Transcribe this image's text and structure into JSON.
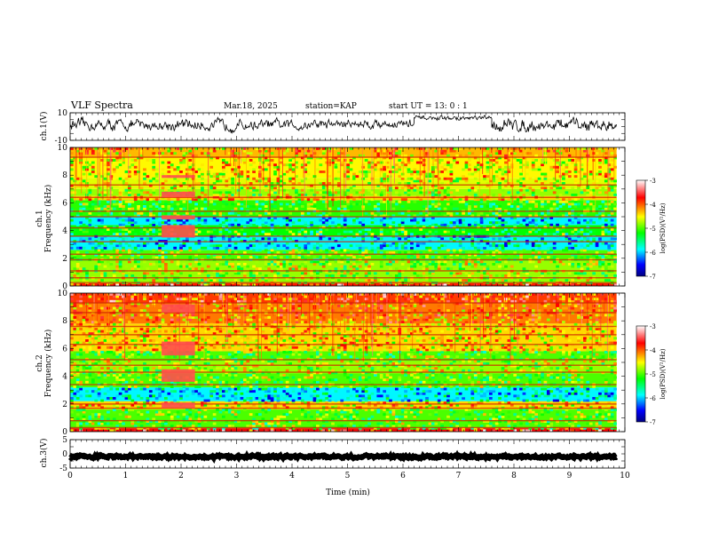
{
  "header": {
    "title": "VLF Spectra",
    "date": "Mar.18, 2025",
    "station": "station=KAP",
    "start": "start  UT =   13: 0  : 1"
  },
  "colorbar": {
    "label": "log(PSD)(V²/Hz)",
    "ticks": [
      "-3",
      "-4",
      "-5",
      "-6",
      "-7"
    ],
    "colors": [
      "#ffffff",
      "#ff0000",
      "#ffff00",
      "#00ff00",
      "#00ffff",
      "#0000ff",
      "#000080"
    ]
  },
  "chart_data": [
    {
      "type": "line",
      "name": "ch1 waveform",
      "ylabel": "ch.1(V)",
      "ylim": [
        -10,
        10
      ],
      "y_ticks": [
        "10",
        "-10"
      ],
      "xlim": [
        0,
        10
      ],
      "x_unit": "min",
      "segments": [
        {
          "x": [
            0,
            4.3
          ],
          "mean": 1.0,
          "amp": 3.5
        },
        {
          "x": [
            4.3,
            6.2
          ],
          "mean": 2.0,
          "amp": 3.0
        },
        {
          "x": [
            6.2,
            7.6
          ],
          "mean": 6.0,
          "amp": 1.5
        },
        {
          "x": [
            7.6,
            9.85
          ],
          "mean": 1.0,
          "amp": 4.0
        }
      ]
    },
    {
      "type": "heatmap",
      "name": "ch1 spectrogram",
      "ylabel_top": "ch.1",
      "ylabel": "Frequency (kHz)",
      "y_ticks": [
        "0",
        "2",
        "4",
        "6",
        "8",
        "10"
      ],
      "ylim": [
        0,
        10
      ],
      "xlim": [
        0,
        10
      ],
      "data_xmax": 9.85,
      "zlim": [
        -7,
        -3
      ],
      "bands": [
        {
          "f": [
            0.0,
            0.2
          ],
          "z": -3.8
        },
        {
          "f": [
            0.2,
            1.8
          ],
          "z": -4.8
        },
        {
          "f": [
            1.8,
            2.6
          ],
          "z": -5.0
        },
        {
          "f": [
            2.6,
            3.6
          ],
          "z": -5.9
        },
        {
          "f": [
            3.6,
            4.4
          ],
          "z": -5.2
        },
        {
          "f": [
            4.4,
            5.0
          ],
          "z": -5.9
        },
        {
          "f": [
            5.0,
            6.2
          ],
          "z": -5.1
        },
        {
          "f": [
            6.2,
            6.5
          ],
          "z": -4.4
        },
        {
          "f": [
            6.5,
            7.0
          ],
          "z": -4.8
        },
        {
          "f": [
            7.0,
            7.8
          ],
          "z": -4.6
        },
        {
          "f": [
            7.8,
            9.3
          ],
          "z": -4.5
        },
        {
          "f": [
            9.3,
            10.0
          ],
          "z": -4.3
        }
      ],
      "lines_khz": [
        0.25,
        0.6,
        1.1,
        1.9,
        2.3,
        3.2,
        3.6,
        4.2,
        5.0,
        5.4,
        6.4,
        7.3,
        9.3
      ],
      "burst": {
        "t": [
          1.65,
          2.25
        ],
        "f_ranges": [
          [
            3.5,
            4.4
          ],
          [
            4.8,
            5.1
          ],
          [
            6.4,
            6.8
          ],
          [
            7.8,
            8.0
          ]
        ],
        "z": -3.5
      }
    },
    {
      "type": "heatmap",
      "name": "ch2 spectrogram",
      "ylabel_top": "ch.2",
      "ylabel": "Frequency (kHz)",
      "y_ticks": [
        "0",
        "2",
        "4",
        "6",
        "8",
        "10"
      ],
      "ylim": [
        0,
        10
      ],
      "xlim": [
        0,
        10
      ],
      "data_xmax": 9.85,
      "zlim": [
        -7,
        -3
      ],
      "bands": [
        {
          "f": [
            0.0,
            0.25
          ],
          "z": -3.7
        },
        {
          "f": [
            0.25,
            1.6
          ],
          "z": -5.0
        },
        {
          "f": [
            1.6,
            2.2
          ],
          "z": -4.4
        },
        {
          "f": [
            2.2,
            3.2
          ],
          "z": -5.9
        },
        {
          "f": [
            3.2,
            4.2
          ],
          "z": -5.0
        },
        {
          "f": [
            4.2,
            5.1
          ],
          "z": -4.8
        },
        {
          "f": [
            5.1,
            5.8
          ],
          "z": -5.0
        },
        {
          "f": [
            5.8,
            7.8
          ],
          "z": -4.4
        },
        {
          "f": [
            7.8,
            9.3
          ],
          "z": -4.1
        },
        {
          "f": [
            9.3,
            10.0
          ],
          "z": -3.9
        }
      ],
      "lines_khz": [
        0.3,
        0.8,
        1.7,
        2.0,
        3.4,
        4.3,
        4.8,
        5.2,
        6.3,
        7.0,
        7.6,
        8.6,
        9.3
      ],
      "burst": {
        "t": [
          1.65,
          2.25
        ],
        "f_ranges": [
          [
            1.7,
            2.1
          ],
          [
            3.6,
            4.5
          ],
          [
            5.5,
            6.5
          ],
          [
            8.6,
            9.2
          ]
        ],
        "z": -3.5
      }
    },
    {
      "type": "line",
      "name": "ch3 waveform",
      "ylabel": "ch.3(V)",
      "ylim": [
        -5,
        5
      ],
      "y_ticks": [
        "5",
        "0",
        "-5"
      ],
      "xlim": [
        0,
        10
      ],
      "xlabel": "Time  (min)",
      "x_ticks": [
        "0",
        "1",
        "2",
        "3",
        "4",
        "5",
        "6",
        "7",
        "8",
        "9",
        "10"
      ],
      "segments": [
        {
          "x": [
            0,
            9.85
          ],
          "mean": -1.0,
          "amp": 0.4
        }
      ]
    }
  ]
}
